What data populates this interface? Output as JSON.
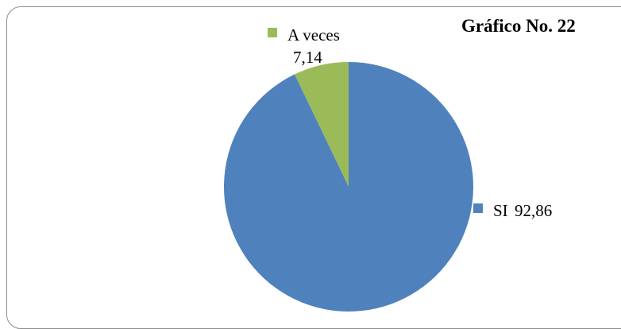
{
  "chart_data": {
    "type": "pie",
    "title": "Gráfico No. 22",
    "slices": [
      {
        "label": "A veces",
        "value": 7.14,
        "value_text": "7,14",
        "color": "#9bbb59"
      },
      {
        "label": "SI",
        "value": 92.86,
        "value_text": "92,86",
        "color": "#4f81bd"
      }
    ],
    "start_angle_deg": 0,
    "direction": "counterclockwise",
    "legend": "inline"
  }
}
